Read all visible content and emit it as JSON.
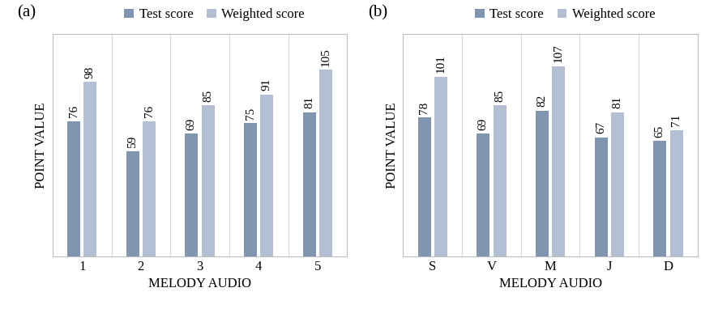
{
  "chart_data": [
    {
      "type": "bar",
      "title": "(a)",
      "x_label": "MELODY AUDIO",
      "y_label": "POINT VALUE",
      "categories": [
        "1",
        "2",
        "3",
        "4",
        "5"
      ],
      "series": [
        {
          "name": "Test score",
          "color": "#8095b0",
          "values": [
            76,
            59,
            69,
            75,
            81
          ]
        },
        {
          "name": "Weighted score",
          "color": "#b3c0d3",
          "values": [
            98,
            76,
            85,
            91,
            105
          ]
        }
      ],
      "ylim": [
        0,
        125
      ],
      "yticks": [],
      "tick_labels": "x",
      "data_labels": true,
      "legend": "upper center"
    },
    {
      "type": "bar",
      "title": "(b)",
      "x_label": "MELODY AUDIO",
      "y_label": "POINT VALUE",
      "categories": [
        "S",
        "V",
        "M",
        "J",
        "D"
      ],
      "series": [
        {
          "name": "Test score",
          "color": "#8095b0",
          "values": [
            78,
            69,
            82,
            67,
            65
          ]
        },
        {
          "name": "Weighted score",
          "color": "#b3c0d3",
          "values": [
            101,
            85,
            107,
            81,
            71
          ]
        }
      ],
      "ylim": [
        0,
        125
      ],
      "yticks": [],
      "tick_labels": "x",
      "data_labels": true,
      "legend": "upper center"
    }
  ]
}
